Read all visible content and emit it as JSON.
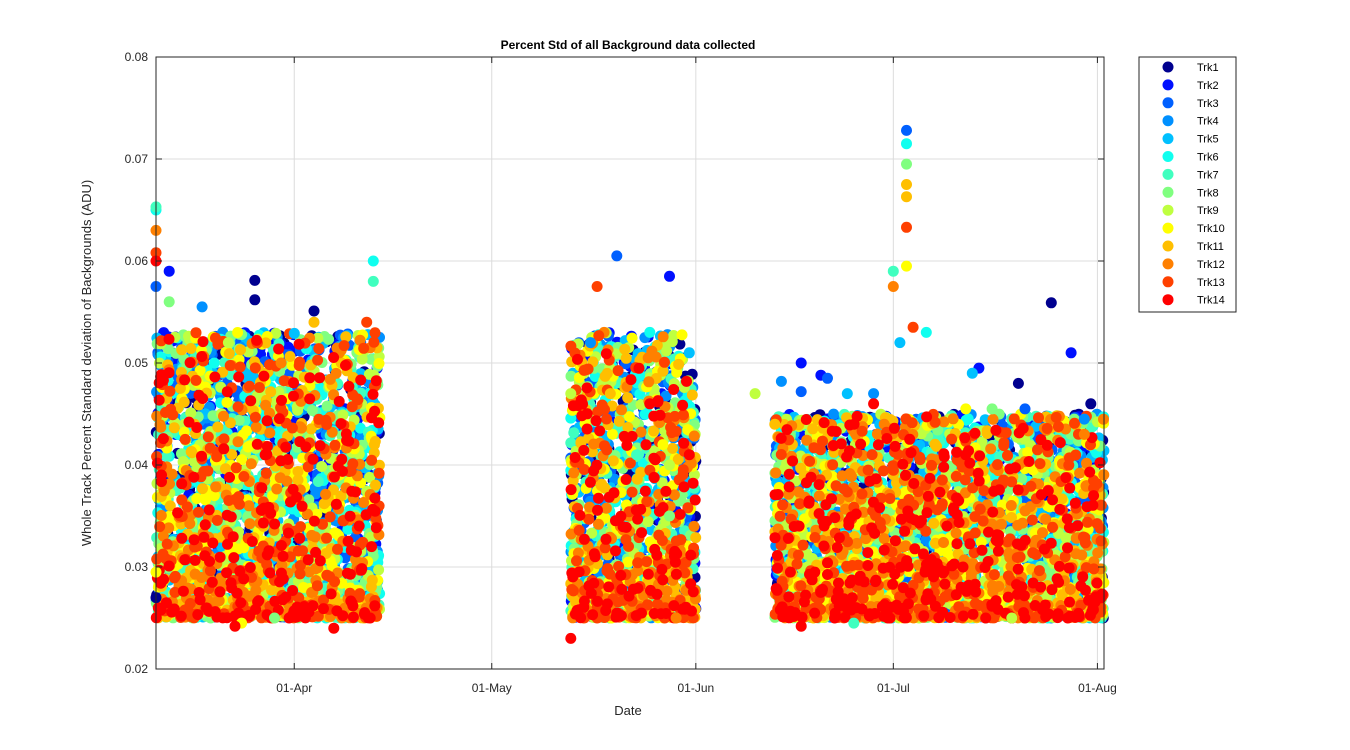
{
  "chart_data": {
    "type": "scatter",
    "title": "Percent Std of all Background data collected",
    "xlabel": "Date",
    "ylabel": "Whole Track Percent Standard deviation of Backgrounds (ADU)",
    "x_axis_type": "date",
    "xlim": [
      "2017-03-11",
      "2017-08-02"
    ],
    "ylim": [
      0.02,
      0.08
    ],
    "x_ticks": [
      {
        "date": "2017-04-01",
        "label": "01-Apr"
      },
      {
        "date": "2017-05-01",
        "label": "01-May"
      },
      {
        "date": "2017-06-01",
        "label": "01-Jun"
      },
      {
        "date": "2017-07-01",
        "label": "01-Jul"
      },
      {
        "date": "2017-08-01",
        "label": "01-Aug"
      }
    ],
    "y_ticks": [
      "0.02",
      "0.03",
      "0.04",
      "0.05",
      "0.06",
      "0.07",
      "0.08"
    ],
    "grid": true,
    "legend_position": "outside-top-right",
    "marker": "filled-circle",
    "series": [
      {
        "name": "Trk1",
        "color": "#00008F",
        "points": [
          [
            "2017-03-11",
            0.027
          ],
          [
            "2017-03-26",
            0.0581
          ],
          [
            "2017-03-26",
            0.0562
          ],
          [
            "2017-04-04",
            0.0551
          ],
          [
            "2017-07-31",
            0.046
          ],
          [
            "2017-07-25",
            0.0559
          ],
          [
            "2017-07-20",
            0.048
          ]
        ]
      },
      {
        "name": "Trk2",
        "color": "#0010FF",
        "points": [
          [
            "2017-03-13",
            0.059
          ],
          [
            "2017-05-28",
            0.0585
          ],
          [
            "2017-06-17",
            0.05
          ],
          [
            "2017-06-20",
            0.0488
          ],
          [
            "2017-07-14",
            0.0495
          ],
          [
            "2017-07-28",
            0.051
          ]
        ]
      },
      {
        "name": "Trk3",
        "color": "#0060FF",
        "points": [
          [
            "2017-03-11",
            0.0575
          ],
          [
            "2017-05-20",
            0.0605
          ],
          [
            "2017-06-17",
            0.0472
          ],
          [
            "2017-06-21",
            0.0485
          ],
          [
            "2017-07-03",
            0.0728
          ],
          [
            "2017-07-21",
            0.0455
          ]
        ]
      },
      {
        "name": "Trk4",
        "color": "#0090FF",
        "points": [
          [
            "2017-03-18",
            0.0555
          ],
          [
            "2017-05-16",
            0.052
          ],
          [
            "2017-06-14",
            0.0482
          ],
          [
            "2017-06-28",
            0.047
          ],
          [
            "2017-07-30",
            0.0445
          ]
        ]
      },
      {
        "name": "Trk5",
        "color": "#00C0FF",
        "points": [
          [
            "2017-04-01",
            0.0529
          ],
          [
            "2017-05-31",
            0.051
          ],
          [
            "2017-06-24",
            0.047
          ],
          [
            "2017-07-02",
            0.052
          ],
          [
            "2017-07-13",
            0.049
          ]
        ]
      },
      {
        "name": "Trk6",
        "color": "#10FFEF",
        "points": [
          [
            "2017-03-11",
            0.065
          ],
          [
            "2017-04-13",
            0.06
          ],
          [
            "2017-05-25",
            0.053
          ],
          [
            "2017-07-03",
            0.0715
          ],
          [
            "2017-07-06",
            0.053
          ]
        ]
      },
      {
        "name": "Trk7",
        "color": "#40FFBF",
        "points": [
          [
            "2017-03-11",
            0.0653
          ],
          [
            "2017-04-13",
            0.058
          ],
          [
            "2017-05-23",
            0.041
          ],
          [
            "2017-07-01",
            0.059
          ],
          [
            "2017-06-25",
            0.0245
          ]
        ]
      },
      {
        "name": "Trk8",
        "color": "#80FF80",
        "points": [
          [
            "2017-03-13",
            0.056
          ],
          [
            "2017-03-29",
            0.025
          ],
          [
            "2017-05-28",
            0.035
          ],
          [
            "2017-07-03",
            0.0695
          ],
          [
            "2017-07-16",
            0.0455
          ]
        ]
      },
      {
        "name": "Trk9",
        "color": "#BFFF40",
        "points": [
          [
            "2017-03-22",
            0.052
          ],
          [
            "2017-05-13",
            0.047
          ],
          [
            "2017-05-28",
            0.04
          ],
          [
            "2017-07-19",
            0.025
          ],
          [
            "2017-06-10",
            0.047
          ]
        ]
      },
      {
        "name": "Trk10",
        "color": "#FFFF00",
        "points": [
          [
            "2017-03-11",
            0.0295
          ],
          [
            "2017-03-24",
            0.0245
          ],
          [
            "2017-05-27",
            0.042
          ],
          [
            "2017-07-03",
            0.0595
          ],
          [
            "2017-07-12",
            0.0455
          ]
        ]
      },
      {
        "name": "Trk11",
        "color": "#FFBF00",
        "points": [
          [
            "2017-04-04",
            0.054
          ],
          [
            "2017-05-19",
            0.047
          ],
          [
            "2017-07-03",
            0.0675
          ],
          [
            "2017-07-03",
            0.0663
          ],
          [
            "2017-06-13",
            0.044
          ]
        ]
      },
      {
        "name": "Trk12",
        "color": "#FF8000",
        "points": [
          [
            "2017-03-11",
            0.063
          ],
          [
            "2017-03-30",
            0.05
          ],
          [
            "2017-05-29",
            0.025
          ],
          [
            "2017-07-01",
            0.0575
          ],
          [
            "2017-07-30",
            0.043
          ]
        ]
      },
      {
        "name": "Trk13",
        "color": "#FF4000",
        "points": [
          [
            "2017-03-11",
            0.0608
          ],
          [
            "2017-04-12",
            0.054
          ],
          [
            "2017-05-17",
            0.0575
          ],
          [
            "2017-07-03",
            0.0633
          ],
          [
            "2017-07-04",
            0.0535
          ]
        ]
      },
      {
        "name": "Trk14",
        "color": "#FF0000",
        "points": [
          [
            "2017-03-11",
            0.06
          ],
          [
            "2017-03-23",
            0.0242
          ],
          [
            "2017-04-07",
            0.024
          ],
          [
            "2017-05-13",
            0.023
          ],
          [
            "2017-05-25",
            0.046
          ],
          [
            "2017-06-17",
            0.0242
          ],
          [
            "2017-06-28",
            0.046
          ]
        ]
      }
    ],
    "clusters": [
      {
        "start": "2017-03-11",
        "end": "2017-04-14",
        "ymin": 0.025,
        "ymax": 0.053
      },
      {
        "start": "2017-05-13",
        "end": "2017-05-30",
        "ymin": 0.025,
        "ymax": 0.053
      },
      {
        "start": "2017-05-30",
        "end": "2017-06-01",
        "ymin": 0.025,
        "ymax": 0.049
      },
      {
        "start": "2017-06-13",
        "end": "2017-08-02",
        "ymin": 0.025,
        "ymax": 0.045
      }
    ]
  }
}
